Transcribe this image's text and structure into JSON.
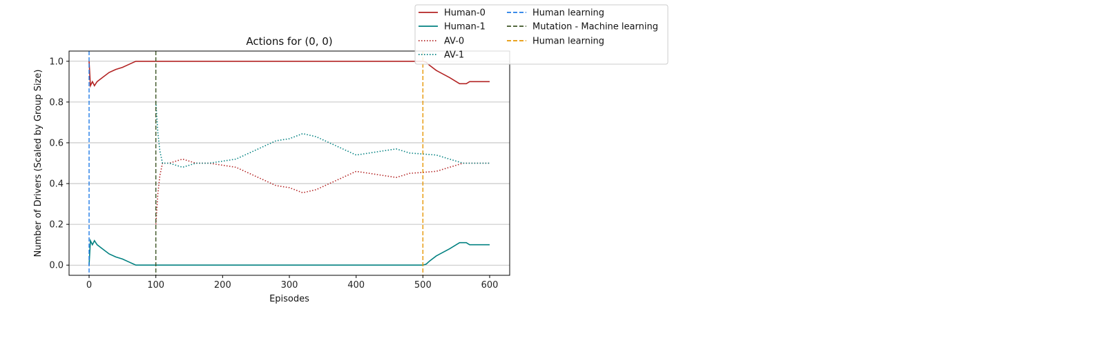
{
  "chart_data": {
    "type": "line",
    "title": "Actions for (0, 0)",
    "xlabel": "Episodes",
    "ylabel": "Number of Drivers (Scaled by Group Size)",
    "xlim": [
      -30,
      630
    ],
    "ylim": [
      -0.05,
      1.05
    ],
    "xticks": [
      0,
      100,
      200,
      300,
      400,
      500,
      600
    ],
    "yticks": [
      0.0,
      0.2,
      0.4,
      0.6,
      0.8,
      1.0
    ],
    "grid": "horizontal",
    "legend_placement": "upper-right-outside",
    "series": [
      {
        "name": "Human-0",
        "color": "#b22222",
        "style": "solid",
        "points": [
          [
            0,
            1.0
          ],
          [
            2,
            0.88
          ],
          [
            5,
            0.9
          ],
          [
            8,
            0.88
          ],
          [
            12,
            0.9
          ],
          [
            20,
            0.92
          ],
          [
            30,
            0.945
          ],
          [
            40,
            0.96
          ],
          [
            50,
            0.97
          ],
          [
            60,
            0.985
          ],
          [
            70,
            1.0
          ],
          [
            100,
            1.0
          ],
          [
            200,
            1.0
          ],
          [
            300,
            1.0
          ],
          [
            400,
            1.0
          ],
          [
            500,
            1.0
          ],
          [
            505,
            0.995
          ],
          [
            510,
            0.98
          ],
          [
            520,
            0.955
          ],
          [
            540,
            0.92
          ],
          [
            555,
            0.89
          ],
          [
            565,
            0.89
          ],
          [
            570,
            0.9
          ],
          [
            600,
            0.9
          ]
        ]
      },
      {
        "name": "Human-1",
        "color": "#008080",
        "style": "solid",
        "points": [
          [
            0,
            0.0
          ],
          [
            2,
            0.12
          ],
          [
            5,
            0.1
          ],
          [
            8,
            0.12
          ],
          [
            12,
            0.1
          ],
          [
            20,
            0.08
          ],
          [
            30,
            0.055
          ],
          [
            40,
            0.04
          ],
          [
            50,
            0.03
          ],
          [
            60,
            0.015
          ],
          [
            70,
            0.0
          ],
          [
            100,
            0.0
          ],
          [
            200,
            0.0
          ],
          [
            300,
            0.0
          ],
          [
            400,
            0.0
          ],
          [
            500,
            0.0
          ],
          [
            505,
            0.005
          ],
          [
            510,
            0.02
          ],
          [
            520,
            0.045
          ],
          [
            540,
            0.08
          ],
          [
            555,
            0.11
          ],
          [
            565,
            0.11
          ],
          [
            570,
            0.1
          ],
          [
            600,
            0.1
          ]
        ]
      },
      {
        "name": "AV-0",
        "color": "#b22222",
        "style": "dotted",
        "points": [
          [
            100,
            0.2
          ],
          [
            103,
            0.35
          ],
          [
            106,
            0.44
          ],
          [
            110,
            0.5
          ],
          [
            120,
            0.5
          ],
          [
            140,
            0.52
          ],
          [
            160,
            0.5
          ],
          [
            180,
            0.5
          ],
          [
            200,
            0.49
          ],
          [
            220,
            0.48
          ],
          [
            240,
            0.45
          ],
          [
            260,
            0.42
          ],
          [
            280,
            0.39
          ],
          [
            300,
            0.38
          ],
          [
            320,
            0.355
          ],
          [
            340,
            0.37
          ],
          [
            360,
            0.4
          ],
          [
            380,
            0.43
          ],
          [
            400,
            0.46
          ],
          [
            420,
            0.45
          ],
          [
            440,
            0.44
          ],
          [
            460,
            0.43
          ],
          [
            480,
            0.45
          ],
          [
            500,
            0.455
          ],
          [
            520,
            0.46
          ],
          [
            540,
            0.48
          ],
          [
            560,
            0.5
          ],
          [
            600,
            0.5
          ]
        ]
      },
      {
        "name": "AV-1",
        "color": "#008080",
        "style": "dotted",
        "points": [
          [
            100,
            0.8
          ],
          [
            103,
            0.65
          ],
          [
            106,
            0.56
          ],
          [
            110,
            0.5
          ],
          [
            120,
            0.5
          ],
          [
            140,
            0.48
          ],
          [
            160,
            0.5
          ],
          [
            180,
            0.5
          ],
          [
            200,
            0.51
          ],
          [
            220,
            0.52
          ],
          [
            240,
            0.55
          ],
          [
            260,
            0.58
          ],
          [
            280,
            0.61
          ],
          [
            300,
            0.62
          ],
          [
            320,
            0.645
          ],
          [
            340,
            0.63
          ],
          [
            360,
            0.6
          ],
          [
            380,
            0.57
          ],
          [
            400,
            0.54
          ],
          [
            420,
            0.55
          ],
          [
            440,
            0.56
          ],
          [
            460,
            0.57
          ],
          [
            480,
            0.55
          ],
          [
            500,
            0.545
          ],
          [
            520,
            0.54
          ],
          [
            540,
            0.52
          ],
          [
            560,
            0.5
          ],
          [
            600,
            0.5
          ]
        ]
      }
    ],
    "vlines": [
      {
        "name": "Human learning",
        "x": 0,
        "color": "#1e7be6",
        "style": "dashed"
      },
      {
        "name": "Mutation - Machine learning",
        "x": 100,
        "color": "#3b5323",
        "style": "dashed"
      },
      {
        "name": "Human learning",
        "x": 500,
        "color": "#e69500",
        "style": "dashed"
      }
    ]
  }
}
